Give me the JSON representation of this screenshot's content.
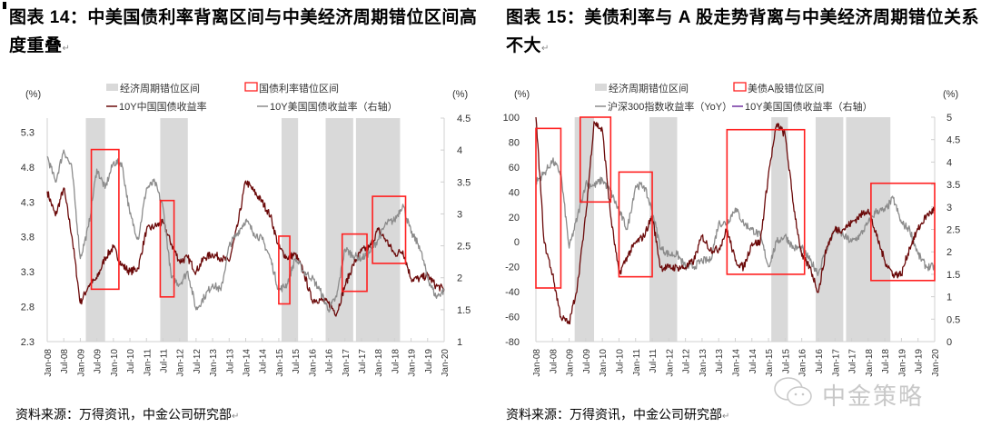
{
  "left_figure": {
    "title": "图表 14：中美国债利率背离区间与中美经济周期错位区间高度重叠",
    "source": "资料来源：万得资讯，中金公司研究部",
    "return_mark": "↵"
  },
  "right_figure": {
    "title": "图表 15：美债利率与 A 股走势背离与中美经济周期错位关系不大",
    "source": "资料来源：万得资讯，中金公司研究部",
    "return_mark": "↵"
  },
  "watermark": {
    "text": "中金策略",
    "icon": "wechat-icon"
  },
  "chart_data": [
    {
      "type": "line",
      "left_unit": "(%)",
      "right_unit": "(%)",
      "legend": {
        "shade": "经济周期错位区间",
        "box": "国债利率错位区间",
        "series": [
          "10Y中国国债收益率",
          "10Y美国国债收益率（右轴）"
        ]
      },
      "ylim_left": [
        2.3,
        5.5
      ],
      "yticks_left": [
        "5.3",
        "4.8",
        "4.3",
        "3.8",
        "3.3",
        "2.8",
        "2.3"
      ],
      "ylim_right": [
        1,
        4.5
      ],
      "yticks_right": [
        "4.5",
        "4",
        "3.5",
        "3",
        "2.5",
        "2",
        "1.5",
        "1"
      ],
      "xticks": [
        "Jan-08",
        "Jul-08",
        "Jan-09",
        "Jul-09",
        "Jan-10",
        "Jul-10",
        "Jan-11",
        "Jul-11",
        "Jan-12",
        "Jul-12",
        "Jan-13",
        "Jul-13",
        "Jan-14",
        "Jul-14",
        "Jan-15",
        "Jul-15",
        "Jan-16",
        "Jul-16",
        "Jan-17",
        "Jul-17",
        "Jan-18",
        "Jul-18",
        "Jan-19",
        "Jul-19",
        "Jan-20"
      ],
      "x": [
        "2008-01",
        "2008-04",
        "2008-07",
        "2008-10",
        "2009-01",
        "2009-04",
        "2009-07",
        "2009-10",
        "2010-01",
        "2010-04",
        "2010-07",
        "2010-10",
        "2011-01",
        "2011-04",
        "2011-07",
        "2011-10",
        "2012-01",
        "2012-04",
        "2012-07",
        "2012-10",
        "2013-01",
        "2013-04",
        "2013-07",
        "2013-10",
        "2014-01",
        "2014-04",
        "2014-07",
        "2014-10",
        "2015-01",
        "2015-04",
        "2015-07",
        "2015-10",
        "2016-01",
        "2016-04",
        "2016-07",
        "2016-10",
        "2017-01",
        "2017-04",
        "2017-07",
        "2017-10",
        "2018-01",
        "2018-04",
        "2018-07",
        "2018-10",
        "2019-01",
        "2019-04",
        "2019-07",
        "2019-10",
        "2020-01"
      ],
      "series": [
        {
          "name": "10Y中国国债收益率",
          "axis": "left",
          "color": "#6b0a0a",
          "values": [
            4.45,
            4.1,
            4.5,
            3.8,
            2.85,
            3.1,
            3.2,
            3.5,
            3.65,
            3.4,
            3.3,
            3.35,
            3.9,
            3.95,
            4.0,
            3.7,
            3.45,
            3.5,
            3.3,
            3.5,
            3.55,
            3.5,
            3.45,
            3.95,
            4.6,
            4.45,
            4.3,
            4.1,
            3.65,
            3.5,
            3.55,
            3.3,
            2.9,
            2.9,
            2.85,
            2.7,
            3.1,
            3.4,
            3.6,
            3.65,
            3.9,
            3.75,
            3.55,
            3.6,
            3.2,
            3.2,
            3.25,
            3.1,
            3.05
          ]
        },
        {
          "name": "10Y美国国债收益率（右轴）",
          "axis": "right",
          "color": "#8c8c8c",
          "values": [
            3.9,
            3.5,
            4.0,
            3.7,
            2.3,
            2.8,
            3.7,
            3.4,
            3.8,
            3.8,
            3.0,
            2.6,
            3.4,
            3.5,
            3.1,
            2.0,
            1.9,
            2.1,
            1.5,
            1.7,
            1.9,
            1.8,
            2.5,
            2.7,
            2.9,
            2.7,
            2.6,
            2.3,
            1.8,
            1.9,
            2.3,
            2.1,
            2.0,
            1.8,
            1.5,
            1.7,
            2.45,
            2.35,
            2.3,
            2.4,
            2.6,
            2.85,
            2.9,
            3.15,
            2.7,
            2.5,
            2.0,
            1.7,
            1.8
          ]
        }
      ],
      "shaded_periods": [
        {
          "start": "2009-03",
          "end": "2009-10"
        },
        {
          "start": "2011-06",
          "end": "2012-04"
        },
        {
          "start": "2015-02",
          "end": "2015-08"
        },
        {
          "start": "2016-06",
          "end": "2017-04"
        },
        {
          "start": "2017-05",
          "end": "2018-09"
        }
      ],
      "boxes": [
        {
          "start": "2009-05",
          "end": "2010-03",
          "low": 3.05,
          "high": 5.05
        },
        {
          "start": "2011-06",
          "end": "2011-11",
          "low": 2.94,
          "high": 4.32
        },
        {
          "start": "2015-01",
          "end": "2015-05",
          "low": 2.84,
          "high": 3.81
        },
        {
          "start": "2016-12",
          "end": "2017-09",
          "low": 3.02,
          "high": 3.84
        },
        {
          "start": "2017-11",
          "end": "2018-11",
          "low": 3.42,
          "high": 4.38
        }
      ],
      "colors": {
        "shade": "#d9d9d9",
        "box": "#ff2020"
      }
    },
    {
      "type": "line",
      "left_unit": "(%)",
      "right_unit": "(%)",
      "legend": {
        "shade": "经济周期错位区间",
        "box": "美债A股错位区间",
        "series": [
          "沪深300指数收益率（YoY）",
          "10Y美国国债收益率（右轴）"
        ]
      },
      "ylim_left": [
        -80,
        100
      ],
      "yticks_left": [
        "100",
        "80",
        "60",
        "40",
        "20",
        "0",
        "-20",
        "-40",
        "-60",
        "-80"
      ],
      "ylim_right": [
        0,
        5
      ],
      "yticks_right": [
        "5",
        "4.5",
        "4",
        "3.5",
        "3",
        "2.5",
        "2",
        "1.5",
        "1",
        "0.5",
        "0"
      ],
      "xticks": [
        "Jan-08",
        "Jul-08",
        "Jan-09",
        "Jul-09",
        "Jan-10",
        "Jul-10",
        "Jan-11",
        "Jul-11",
        "Jan-12",
        "Jul-12",
        "Jan-13",
        "Jul-13",
        "Jan-14",
        "Jul-14",
        "Jan-15",
        "Jul-15",
        "Jan-16",
        "Jul-16",
        "Jan-17",
        "Jul-17",
        "Jan-18",
        "Jul-18",
        "Jan-19",
        "Jul-19",
        "Jan-20"
      ],
      "x": [
        "2008-01",
        "2008-04",
        "2008-07",
        "2008-10",
        "2009-01",
        "2009-04",
        "2009-07",
        "2009-10",
        "2010-01",
        "2010-04",
        "2010-07",
        "2010-10",
        "2011-01",
        "2011-04",
        "2011-07",
        "2011-10",
        "2012-01",
        "2012-04",
        "2012-07",
        "2012-10",
        "2013-01",
        "2013-04",
        "2013-07",
        "2013-10",
        "2014-01",
        "2014-04",
        "2014-07",
        "2014-10",
        "2015-01",
        "2015-04",
        "2015-07",
        "2015-10",
        "2016-01",
        "2016-04",
        "2016-07",
        "2016-10",
        "2017-01",
        "2017-04",
        "2017-07",
        "2017-10",
        "2018-01",
        "2018-04",
        "2018-07",
        "2018-10",
        "2019-01",
        "2019-04",
        "2019-07",
        "2019-10",
        "2020-01"
      ],
      "series": [
        {
          "name": "沪深300指数收益率（YoY）",
          "axis": "left",
          "color": "#8c8c8c",
          "values": [
            48,
            55,
            65,
            55,
            -5,
            20,
            47,
            45,
            50,
            40,
            25,
            10,
            45,
            45,
            25,
            -5,
            -10,
            -10,
            -20,
            -20,
            -15,
            -15,
            15,
            15,
            27,
            15,
            10,
            5,
            -20,
            0,
            5,
            -5,
            -5,
            -15,
            -25,
            -5,
            10,
            5,
            0,
            5,
            15,
            25,
            25,
            35,
            15,
            10,
            -10,
            -20,
            -20
          ]
        },
        {
          "name": "10Y美国国债收益率（右轴）",
          "axis": "right",
          "color": "#6b0a0a",
          "legend_color": "#7030a0",
          "values": [
            5.0,
            2.2,
            1.5,
            0.55,
            0.4,
            1.25,
            2.8,
            4.9,
            4.7,
            2.8,
            1.5,
            1.9,
            2.2,
            2.35,
            2.8,
            1.65,
            1.65,
            1.65,
            1.65,
            1.8,
            2.35,
            2.05,
            2.05,
            2.5,
            1.8,
            1.65,
            2.2,
            2.2,
            3.75,
            4.85,
            4.6,
            3.05,
            1.9,
            1.65,
            1.1,
            2.1,
            2.5,
            2.5,
            2.65,
            2.8,
            2.95,
            2.35,
            1.8,
            1.5,
            1.5,
            2.1,
            2.5,
            2.8,
            2.95
          ]
        }
      ],
      "shaded_periods": [
        {
          "start": "2009-03",
          "end": "2009-10"
        },
        {
          "start": "2011-06",
          "end": "2012-04"
        },
        {
          "start": "2015-02",
          "end": "2015-08"
        },
        {
          "start": "2016-06",
          "end": "2017-04"
        },
        {
          "start": "2017-05",
          "end": "2018-09"
        }
      ],
      "boxes": [
        {
          "start": "2008-01",
          "end": "2008-10",
          "low": -37,
          "high": 91
        },
        {
          "start": "2009-05",
          "end": "2010-04",
          "low": 32,
          "high": 100
        },
        {
          "start": "2010-07",
          "end": "2011-07",
          "low": -28,
          "high": 56
        },
        {
          "start": "2013-10",
          "end": "2016-02",
          "low": -26,
          "high": 90
        },
        {
          "start": "2018-02",
          "end": "2020-01",
          "low": -31,
          "high": 47
        }
      ],
      "colors": {
        "shade": "#d9d9d9",
        "box": "#ff2020"
      }
    }
  ]
}
